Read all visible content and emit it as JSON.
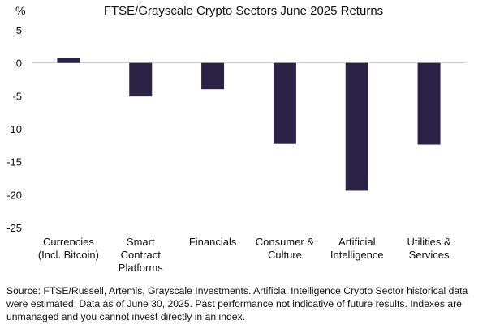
{
  "chart_data": {
    "type": "bar",
    "title": "FTSE/Grayscale Crypto Sectors June 2025 Returns",
    "ylabel": "%",
    "xlabel": "",
    "ylim": [
      -25,
      5
    ],
    "yticks": [
      5,
      0,
      -5,
      -10,
      -15,
      -20,
      -25
    ],
    "grid": false,
    "bar_color": "#2b2245",
    "categories": [
      [
        "Currencies",
        "(Incl. Bitcoin)"
      ],
      [
        "Smart",
        "Contract",
        "Platforms"
      ],
      [
        "Financials"
      ],
      [
        "Consumer &",
        "Culture"
      ],
      [
        "Artificial",
        "Intelligence"
      ],
      [
        "Utilities &",
        "Services"
      ]
    ],
    "values": [
      0.7,
      -5.1,
      -4.0,
      -12.3,
      -19.4,
      -12.4
    ]
  },
  "source_note": "Source: FTSE/Russell, Artemis, Grayscale Investments. Artificial Intelligence Crypto Sector historical data were estimated. Data as of June 30, 2025. Past performance not indicative of future results. Indexes are unmanaged and you cannot invest directly in an index."
}
